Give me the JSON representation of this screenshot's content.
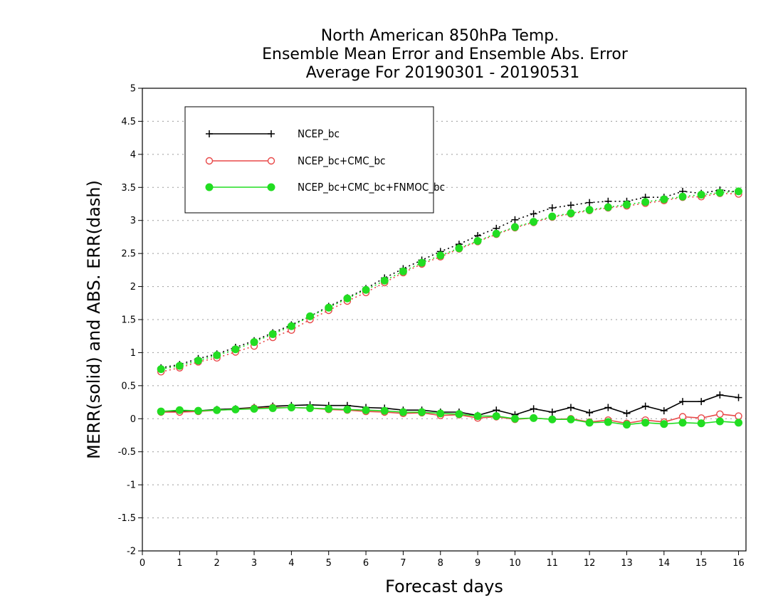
{
  "chart_data": {
    "type": "line",
    "title_lines": [
      "North American 850hPa Temp.",
      "Ensemble Mean Error and Ensemble Abs. Error",
      "Average For 20190301 - 20190531"
    ],
    "xlabel": "Forecast days",
    "ylabel": "MERR(solid) and ABS. ERR(dash)",
    "xlim": [
      0,
      16.2
    ],
    "ylim": [
      -2,
      5
    ],
    "x_ticks": [
      0,
      1,
      2,
      3,
      4,
      5,
      6,
      7,
      8,
      9,
      10,
      11,
      12,
      13,
      14,
      15,
      16
    ],
    "y_ticks": [
      -2,
      -1.5,
      -1,
      -0.5,
      0,
      0.5,
      1,
      1.5,
      2,
      2.5,
      3,
      3.5,
      4,
      4.5,
      5
    ],
    "grid": "horizontal dotted",
    "legend_position": "top-left",
    "x": [
      0.5,
      1,
      1.5,
      2,
      2.5,
      3,
      3.5,
      4,
      4.5,
      5,
      5.5,
      6,
      6.5,
      7,
      7.5,
      8,
      8.5,
      9,
      9.5,
      10,
      10.5,
      11,
      11.5,
      12,
      12.5,
      13,
      13.5,
      14,
      14.5,
      15,
      15.5,
      16
    ],
    "series": [
      {
        "name": "NCEP_bc",
        "color": "#000000",
        "marker": "plus",
        "merr": [
          0.1,
          0.12,
          0.12,
          0.14,
          0.15,
          0.17,
          0.19,
          0.2,
          0.21,
          0.2,
          0.2,
          0.17,
          0.16,
          0.13,
          0.13,
          0.1,
          0.1,
          0.05,
          0.13,
          0.06,
          0.15,
          0.1,
          0.17,
          0.09,
          0.17,
          0.08,
          0.19,
          0.12,
          0.26,
          0.26,
          0.36,
          0.32
        ],
        "abs_err": [
          0.77,
          0.82,
          0.91,
          0.98,
          1.08,
          1.18,
          1.3,
          1.42,
          1.55,
          1.7,
          1.83,
          1.97,
          2.13,
          2.27,
          2.4,
          2.53,
          2.64,
          2.77,
          2.88,
          3.01,
          3.1,
          3.19,
          3.23,
          3.27,
          3.29,
          3.29,
          3.35,
          3.35,
          3.44,
          3.41,
          3.46,
          3.43
        ]
      },
      {
        "name": "NCEP_bc+CMC_bc",
        "color": "#e84848",
        "marker": "circle-open",
        "merr": [
          0.1,
          0.1,
          0.11,
          0.13,
          0.14,
          0.16,
          0.17,
          0.17,
          0.16,
          0.14,
          0.13,
          0.11,
          0.1,
          0.08,
          0.09,
          0.05,
          0.06,
          0.01,
          0.03,
          -0.01,
          0.01,
          -0.01,
          0.0,
          -0.05,
          -0.02,
          -0.07,
          -0.02,
          -0.05,
          0.03,
          0.01,
          0.07,
          0.04
        ],
        "abs_err": [
          0.71,
          0.77,
          0.86,
          0.92,
          1.01,
          1.1,
          1.23,
          1.34,
          1.5,
          1.64,
          1.78,
          1.91,
          2.06,
          2.21,
          2.34,
          2.45,
          2.57,
          2.68,
          2.79,
          2.89,
          2.97,
          3.05,
          3.1,
          3.15,
          3.19,
          3.22,
          3.26,
          3.3,
          3.35,
          3.36,
          3.41,
          3.4
        ]
      },
      {
        "name": "NCEP_bc+CMC_bc+FNMOC_bc",
        "color": "#22dd22",
        "marker": "circle-filled",
        "merr": [
          0.11,
          0.13,
          0.12,
          0.13,
          0.14,
          0.15,
          0.16,
          0.17,
          0.16,
          0.15,
          0.14,
          0.13,
          0.12,
          0.1,
          0.1,
          0.08,
          0.07,
          0.04,
          0.04,
          0.0,
          0.01,
          -0.01,
          -0.01,
          -0.06,
          -0.05,
          -0.09,
          -0.06,
          -0.08,
          -0.06,
          -0.07,
          -0.04,
          -0.06
        ],
        "abs_err": [
          0.75,
          0.8,
          0.88,
          0.96,
          1.05,
          1.16,
          1.28,
          1.4,
          1.55,
          1.68,
          1.82,
          1.95,
          2.09,
          2.23,
          2.36,
          2.47,
          2.58,
          2.69,
          2.8,
          2.9,
          2.98,
          3.06,
          3.11,
          3.16,
          3.2,
          3.24,
          3.28,
          3.32,
          3.36,
          3.39,
          3.42,
          3.44
        ]
      }
    ]
  }
}
